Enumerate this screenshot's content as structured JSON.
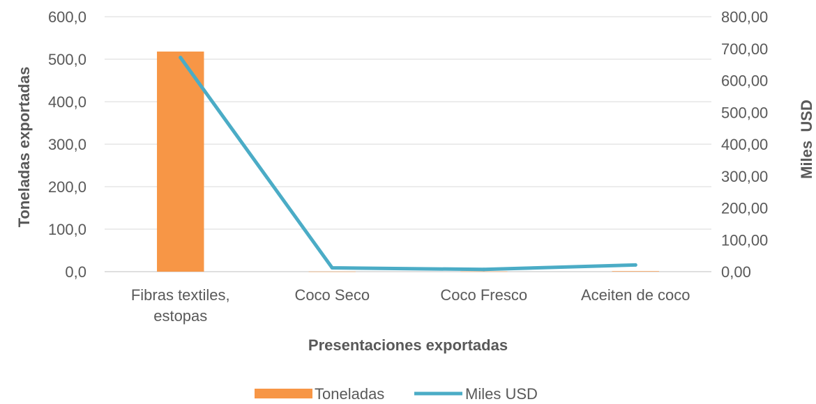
{
  "chart_data": {
    "type": "bar",
    "categories": [
      "Fibras textiles, estopas",
      "Coco Seco",
      "Coco Fresco",
      "Aceiten de coco"
    ],
    "category_lines": [
      [
        "Fibras textiles,",
        "estopas"
      ],
      [
        "Coco Seco"
      ],
      [
        "Coco Fresco"
      ],
      [
        "Aceiten de coco"
      ]
    ],
    "series": [
      {
        "name": "Toneladas",
        "type": "bar",
        "axis": "left",
        "values": [
          518.0,
          0.3,
          0.5,
          1.2
        ],
        "color": "#F79646"
      },
      {
        "name": "Miles USD",
        "type": "line",
        "axis": "right",
        "values": [
          672.0,
          12.0,
          7.0,
          21.0
        ],
        "color": "#4BACC6"
      }
    ],
    "xlabel": "Presentaciones exportadas",
    "ylabel": "Toneladas exportadas",
    "y2label": "Miles  USD",
    "ylim": [
      0,
      600
    ],
    "y2lim": [
      0,
      800
    ],
    "yticks": [
      "0,0",
      "100,0",
      "200,0",
      "300,0",
      "400,0",
      "500,0",
      "600,0"
    ],
    "y2ticks": [
      "0,00",
      "100,00",
      "200,00",
      "300,00",
      "400,00",
      "500,00",
      "600,00",
      "700,00",
      "800,00"
    ],
    "grid": true,
    "legend_position": "bottom"
  }
}
